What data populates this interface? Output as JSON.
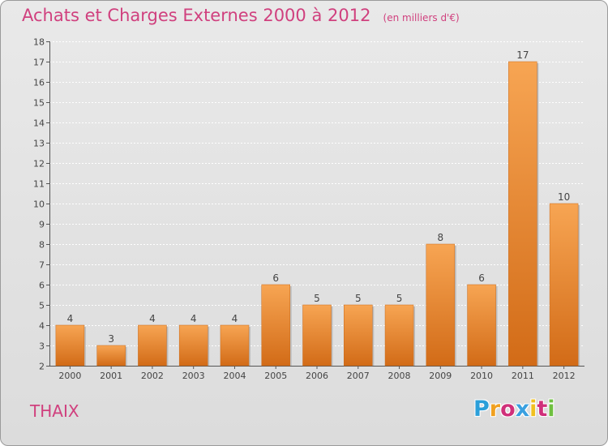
{
  "header": {
    "title": "Achats et Charges Externes 2000 à 2012",
    "subtitle": "(en milliers d'€)"
  },
  "footer": {
    "commune": "THAIX",
    "logo": [
      "P",
      "r",
      "o",
      "x",
      "i",
      "t",
      "i"
    ],
    "logo_colors": [
      "#2b9fd9",
      "#f0a020",
      "#d0307a",
      "#3aa0e0",
      "#f0c020",
      "#d0307a",
      "#6fc040"
    ]
  },
  "colors": {
    "bar_light": "#f7a553",
    "bar_dark": "#d26b17",
    "title": "#d0407e"
  },
  "chart_data": {
    "type": "bar",
    "categories": [
      "2000",
      "2001",
      "2002",
      "2003",
      "2004",
      "2005",
      "2006",
      "2007",
      "2008",
      "2009",
      "2010",
      "2011",
      "2012"
    ],
    "values": [
      4,
      3,
      4,
      4,
      4,
      6,
      5,
      5,
      5,
      8,
      6,
      17,
      10
    ],
    "ylim": [
      2,
      18
    ],
    "yticks": [
      2,
      3,
      4,
      5,
      6,
      7,
      8,
      9,
      10,
      11,
      12,
      13,
      14,
      15,
      16,
      17,
      18
    ],
    "grid": true
  }
}
